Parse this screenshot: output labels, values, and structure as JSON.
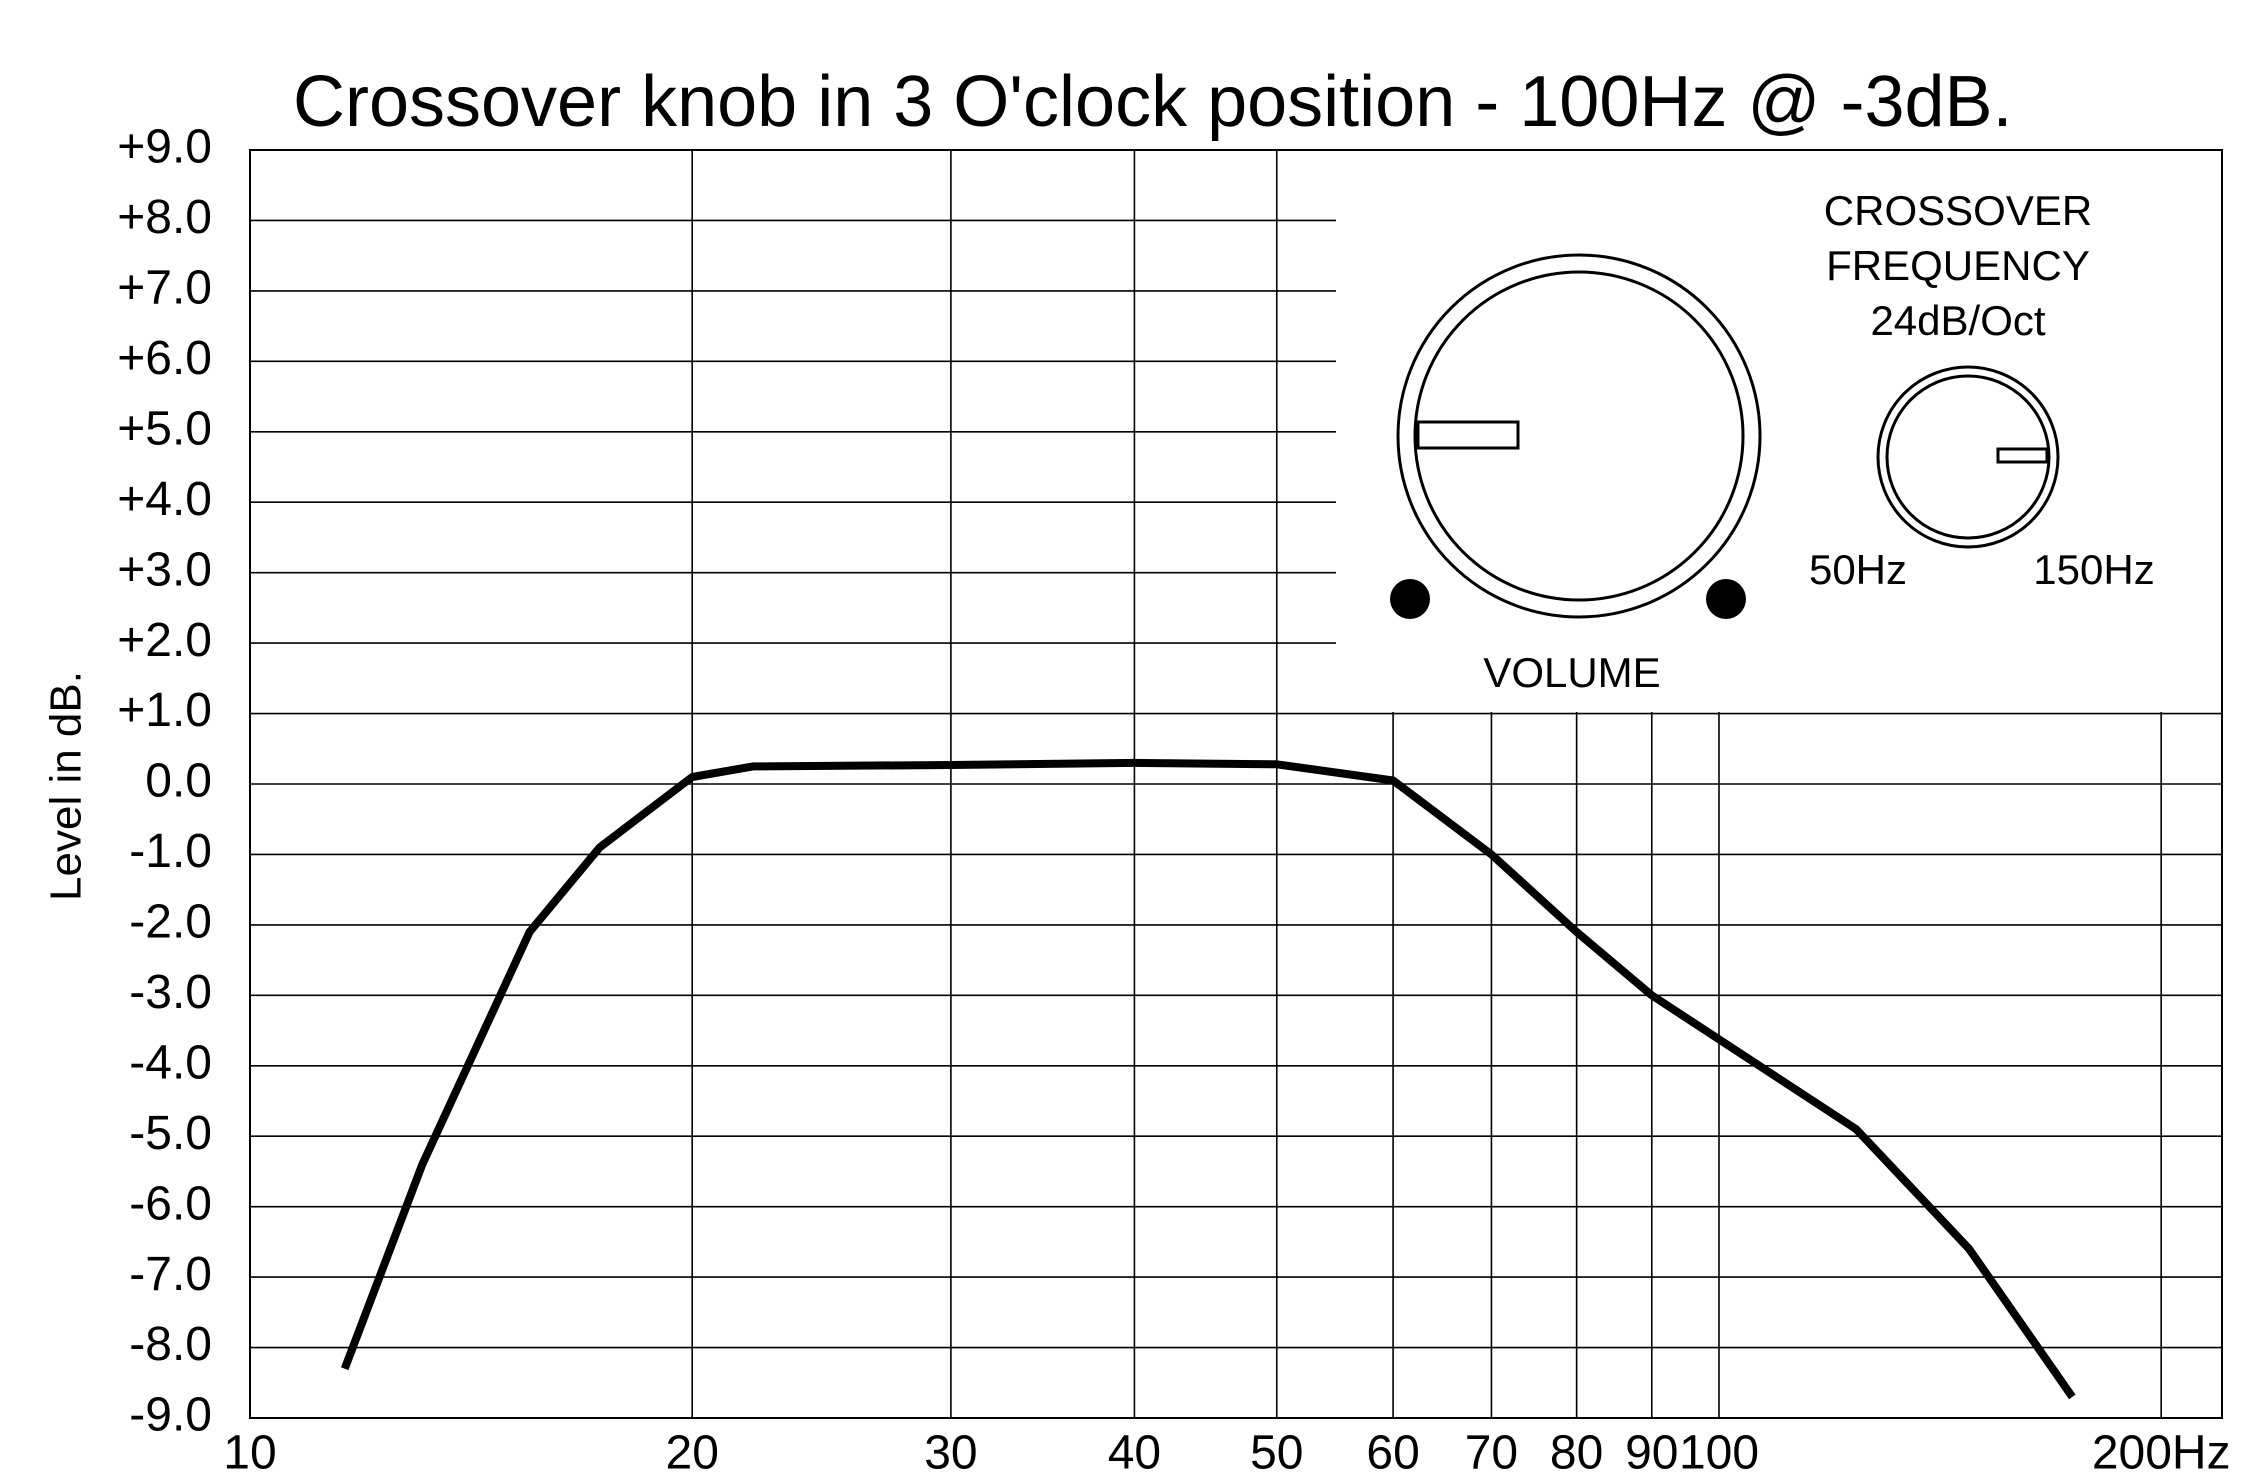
{
  "chart_data": {
    "type": "line",
    "title": "Crossover knob in 3 O'clock position - 100Hz @ -3dB.",
    "y_label": "Level in dB.",
    "x_log": true,
    "grid": true,
    "xlim": [
      10,
      220
    ],
    "ylim": [
      -9,
      9
    ],
    "xticks": [
      10,
      20,
      30,
      40,
      50,
      60,
      70,
      80,
      90,
      100,
      {
        "value": 200,
        "label": "200Hz"
      }
    ],
    "yticks": [
      {
        "value": -9,
        "label": "-9.0"
      },
      {
        "value": -8,
        "label": "-8.0"
      },
      {
        "value": -7,
        "label": "-7.0"
      },
      {
        "value": -6,
        "label": "-6.0"
      },
      {
        "value": -5,
        "label": "-5.0"
      },
      {
        "value": -4,
        "label": "-4.0"
      },
      {
        "value": -3,
        "label": "-3.0"
      },
      {
        "value": -2,
        "label": "-2.0"
      },
      {
        "value": -1,
        "label": "-1.0"
      },
      {
        "value": 0,
        "label": "0.0"
      },
      {
        "value": 1,
        "label": "+1.0"
      },
      {
        "value": 2,
        "label": "+2.0"
      },
      {
        "value": 3,
        "label": "+3.0"
      },
      {
        "value": 4,
        "label": "+4.0"
      },
      {
        "value": 5,
        "label": "+5.0"
      },
      {
        "value": 6,
        "label": "+6.0"
      },
      {
        "value": 7,
        "label": "+7.0"
      },
      {
        "value": 8,
        "label": "+8.0"
      },
      {
        "value": 9,
        "label": "+9.0"
      }
    ],
    "x": [
      11.6,
      13.1,
      15.5,
      17.3,
      20,
      22,
      30,
      40,
      50,
      60,
      70,
      80,
      90,
      124,
      148,
      174
    ],
    "series": [
      {
        "color": "#000000",
        "values": [
          -8.3,
          -5.4,
          -2.1,
          -0.9,
          0.1,
          0.25,
          0.27,
          0.3,
          0.28,
          0.05,
          -1.0,
          -2.1,
          -3.0,
          -4.9,
          -6.6,
          -8.7
        ]
      }
    ],
    "annotations": [
      "CROSSOVER",
      "FREQUENCY",
      "24dB/Oct",
      "50Hz",
      "150Hz",
      "VOLUME"
    ]
  }
}
